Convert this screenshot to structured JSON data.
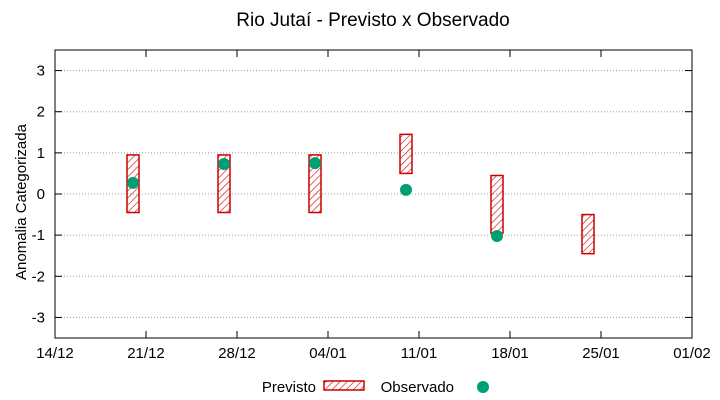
{
  "chart_data": {
    "type": "bar",
    "title": "Rio Jutaí - Previsto x Observado",
    "ylabel": "Anomalia Categorizada",
    "xlabel": "",
    "ylim": [
      -3.5,
      3.5
    ],
    "yticks": [
      -3,
      -2,
      -1,
      0,
      1,
      2,
      3
    ],
    "xticks": [
      "14/12",
      "21/12",
      "28/12",
      "04/01",
      "11/01",
      "18/01",
      "25/01",
      "01/02"
    ],
    "grid": true,
    "legend_position": "bottom",
    "series": [
      {
        "name": "Previsto",
        "kind": "range-box",
        "color": "#cc0000",
        "points": [
          {
            "x": "20/12",
            "low": -0.45,
            "high": 0.95
          },
          {
            "x": "27/12",
            "low": -0.45,
            "high": 0.95
          },
          {
            "x": "03/01",
            "low": -0.45,
            "high": 0.95
          },
          {
            "x": "10/01",
            "low": 0.5,
            "high": 1.45
          },
          {
            "x": "17/01",
            "low": -0.95,
            "high": 0.45
          },
          {
            "x": "24/01",
            "low": -1.45,
            "high": -0.5
          }
        ]
      },
      {
        "name": "Observado",
        "kind": "point",
        "color": "#009e73",
        "points": [
          {
            "x": "20/12",
            "y": 0.27
          },
          {
            "x": "27/12",
            "y": 0.73
          },
          {
            "x": "03/01",
            "y": 0.75
          },
          {
            "x": "10/01",
            "y": 0.1
          },
          {
            "x": "17/01",
            "y": -1.02
          }
        ]
      }
    ]
  }
}
